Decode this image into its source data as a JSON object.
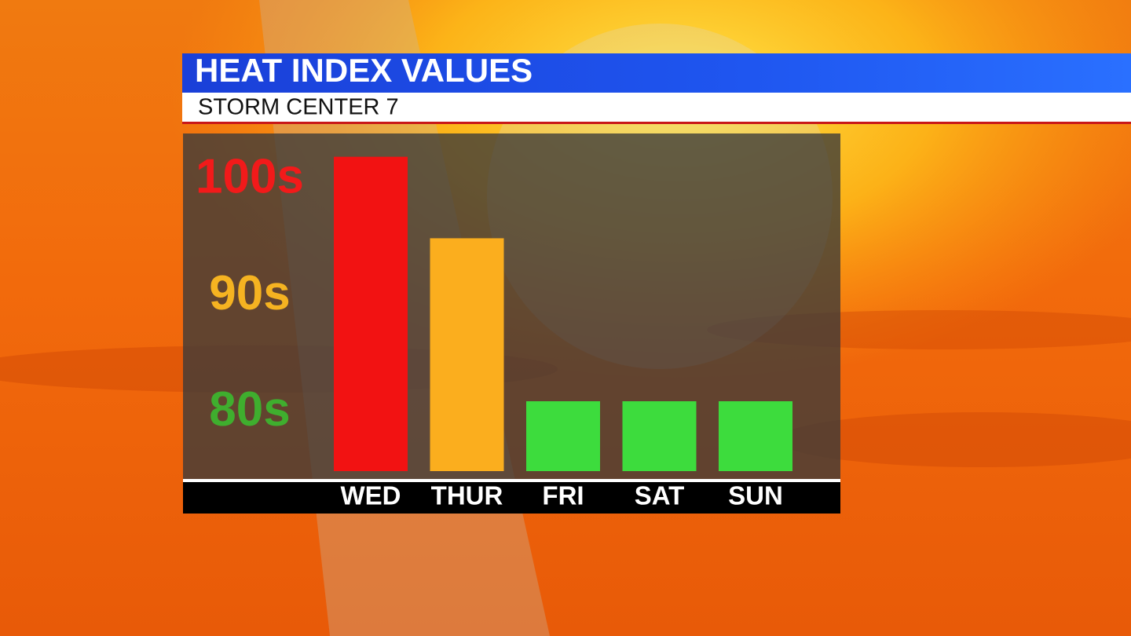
{
  "chart_data": {
    "type": "bar",
    "title": "HEAT INDEX VALUES",
    "subtitle": "STORM CENTER 7",
    "categories": [
      "WED",
      "THUR",
      "FRI",
      "SAT",
      "SUN"
    ],
    "values": [
      102,
      95,
      81,
      81,
      81
    ],
    "colors": [
      "#f21212",
      "#fbae1e",
      "#3ddc3d",
      "#3ddc3d",
      "#3ddc3d"
    ],
    "ylim": [
      75,
      104
    ],
    "yticks": [
      {
        "value": 80,
        "label": "80s"
      },
      {
        "value": 90,
        "label": "90s"
      },
      {
        "value": 100,
        "label": "100s"
      }
    ]
  }
}
